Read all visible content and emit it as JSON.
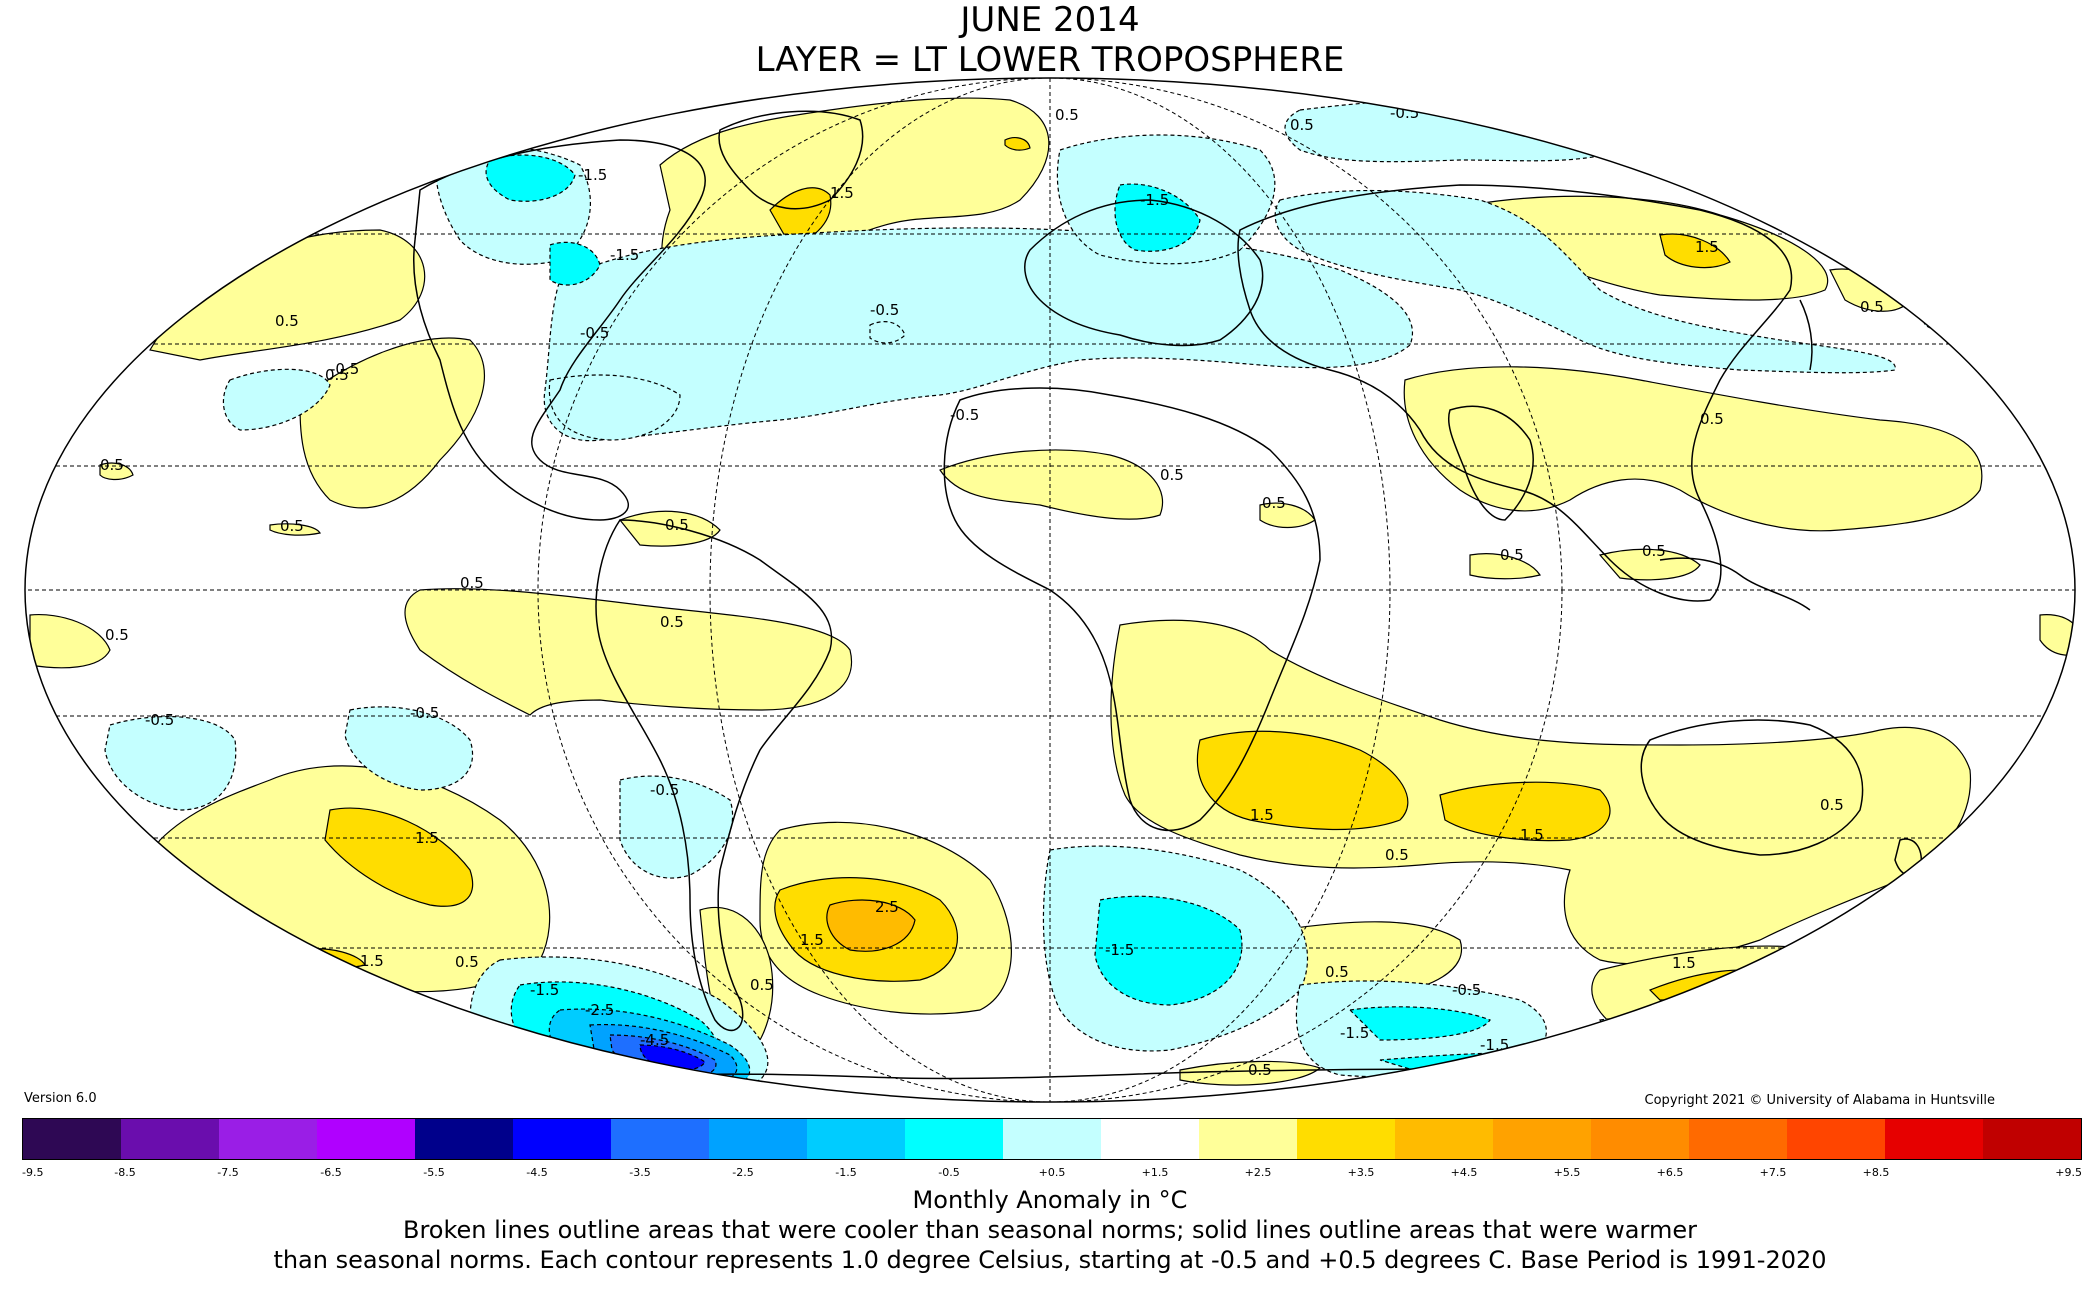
{
  "title": "JUNE 2014",
  "subtitle": "LAYER = LT LOWER TROPOSPHERE",
  "version": "Version 6.0",
  "copyright": "Copyright 2021 © University of Alabama in Huntsville",
  "colorbar": {
    "colors": [
      "#2e0854",
      "#6a0dad",
      "#9a1ee6",
      "#b000ff",
      "#00008b",
      "#0000ff",
      "#1e6fff",
      "#00a2ff",
      "#00ccff",
      "#00ffff",
      "#c4ffff",
      "#ffffff",
      "#ffff99",
      "#ffdd00",
      "#ffbb00",
      "#ffa200",
      "#ff8c00",
      "#ff6a00",
      "#ff4500",
      "#e60000",
      "#c00000"
    ],
    "ticks": [
      "-9.5",
      "-8.5",
      "-7.5",
      "-6.5",
      "-5.5",
      "-4.5",
      "-3.5",
      "-2.5",
      "-1.5",
      "-0.5",
      "+0.5",
      "+1.5",
      "+2.5",
      "+3.5",
      "+4.5",
      "+5.5",
      "+6.5",
      "+7.5",
      "+8.5",
      "+9.5"
    ]
  },
  "unit_label": "Monthly Anomaly in °C",
  "note_line1": "Broken lines outline areas that were cooler than seasonal norms; solid lines outline areas that were warmer",
  "note_line2": "than seasonal norms. Each contour represents 1.0 degree Celsius, starting at -0.5 and +0.5 degrees C. Base Period is 1991-2020",
  "contour_labels": [
    "0.5",
    "-0.5",
    "1.5",
    "-1.5",
    "2.5",
    "-2.5",
    "-4.5"
  ],
  "colors": {
    "warm_0_5": "#ffff99",
    "warm_1_5": "#ffdd00",
    "warm_2_5": "#ffbb00",
    "cool_0_5": "#c4ffff",
    "cool_1_5": "#00ffff",
    "cool_2_5": "#00ccff",
    "cool_3_5": "#00a2ff",
    "cool_4_5": "#1e6fff"
  }
}
